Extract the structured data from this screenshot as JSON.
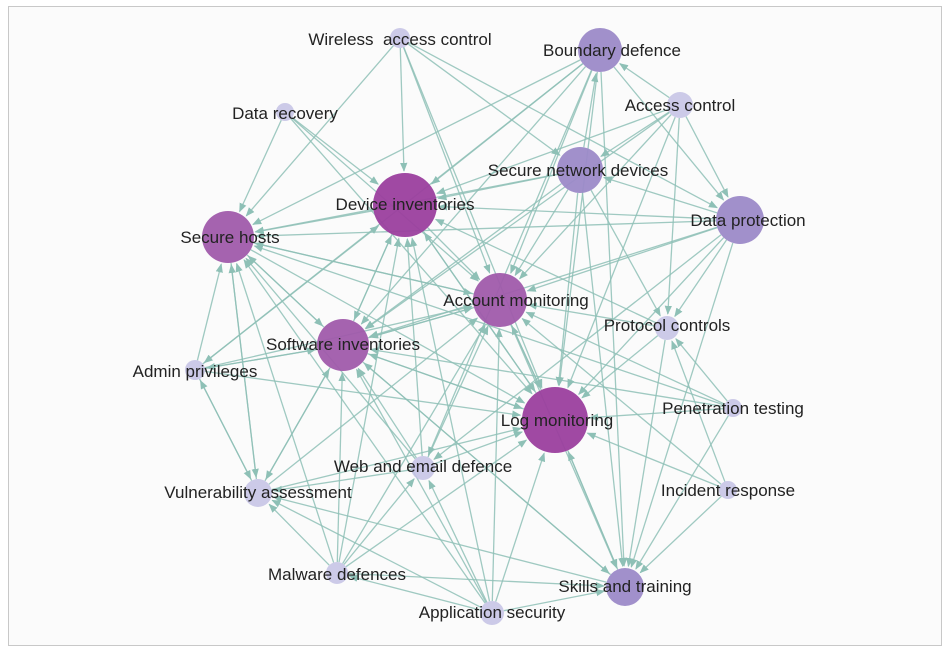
{
  "colors": {
    "edge": "#8ec0b6",
    "node_dark": "#9b3f9e",
    "node_medium": "#a05bab",
    "node_light": "#9c8ac8",
    "node_pale": "#c3c1e4",
    "label": "#222222"
  },
  "nodes": [
    {
      "id": "wireless",
      "label": "Wireless  access control",
      "level": "pale"
    },
    {
      "id": "boundary",
      "label": "Boundary defence",
      "level": "light"
    },
    {
      "id": "access",
      "label": "Access control",
      "level": "pale"
    },
    {
      "id": "recovery",
      "label": "Data recovery",
      "level": "pale"
    },
    {
      "id": "securenet",
      "label": "Secure network devices",
      "level": "light"
    },
    {
      "id": "device",
      "label": "Device inventories",
      "level": "dark"
    },
    {
      "id": "dataprot",
      "label": "Data protection",
      "level": "light"
    },
    {
      "id": "hosts",
      "label": "Secure hosts",
      "level": "medium"
    },
    {
      "id": "account",
      "label": "Account monitoring",
      "level": "medium"
    },
    {
      "id": "protocol",
      "label": "Protocol controls",
      "level": "pale"
    },
    {
      "id": "software",
      "label": "Software inventories",
      "level": "medium"
    },
    {
      "id": "admin",
      "label": "Admin privileges",
      "level": "pale"
    },
    {
      "id": "log",
      "label": "Log monitoring",
      "level": "dark"
    },
    {
      "id": "pentest",
      "label": "Penetration testing",
      "level": "pale"
    },
    {
      "id": "web",
      "label": "Web and email defence",
      "level": "pale"
    },
    {
      "id": "vuln",
      "label": "Vulnerability assessment",
      "level": "pale"
    },
    {
      "id": "incident",
      "label": "Incident response",
      "level": "pale"
    },
    {
      "id": "malware",
      "label": "Malware defences",
      "level": "pale"
    },
    {
      "id": "skills",
      "label": "Skills and training",
      "level": "light"
    },
    {
      "id": "appsec",
      "label": "Application security",
      "level": "pale"
    }
  ],
  "edges": [
    [
      "wireless",
      "device"
    ],
    [
      "wireless",
      "hosts"
    ],
    [
      "wireless",
      "account"
    ],
    [
      "wireless",
      "log"
    ],
    [
      "wireless",
      "dataprot"
    ],
    [
      "wireless",
      "securenet"
    ],
    [
      "boundary",
      "device"
    ],
    [
      "boundary",
      "hosts"
    ],
    [
      "boundary",
      "software"
    ],
    [
      "boundary",
      "account"
    ],
    [
      "boundary",
      "log"
    ],
    [
      "boundary",
      "dataprot"
    ],
    [
      "boundary",
      "skills"
    ],
    [
      "boundary",
      "admin"
    ],
    [
      "boundary",
      "web"
    ],
    [
      "access",
      "securenet"
    ],
    [
      "access",
      "device"
    ],
    [
      "access",
      "account"
    ],
    [
      "access",
      "log"
    ],
    [
      "access",
      "boundary"
    ],
    [
      "access",
      "dataprot"
    ],
    [
      "access",
      "software"
    ],
    [
      "access",
      "protocol"
    ],
    [
      "recovery",
      "device"
    ],
    [
      "recovery",
      "hosts"
    ],
    [
      "recovery",
      "account"
    ],
    [
      "recovery",
      "log"
    ],
    [
      "securenet",
      "device"
    ],
    [
      "securenet",
      "hosts"
    ],
    [
      "securenet",
      "account"
    ],
    [
      "securenet",
      "log"
    ],
    [
      "securenet",
      "software"
    ],
    [
      "securenet",
      "boundary"
    ],
    [
      "securenet",
      "protocol"
    ],
    [
      "securenet",
      "skills"
    ],
    [
      "device",
      "account"
    ],
    [
      "device",
      "log"
    ],
    [
      "device",
      "software"
    ],
    [
      "device",
      "hosts"
    ],
    [
      "dataprot",
      "device"
    ],
    [
      "dataprot",
      "hosts"
    ],
    [
      "dataprot",
      "account"
    ],
    [
      "dataprot",
      "log"
    ],
    [
      "dataprot",
      "software"
    ],
    [
      "dataprot",
      "protocol"
    ],
    [
      "dataprot",
      "securenet"
    ],
    [
      "dataprot",
      "skills"
    ],
    [
      "dataprot",
      "web"
    ],
    [
      "hosts",
      "account"
    ],
    [
      "hosts",
      "log"
    ],
    [
      "hosts",
      "vuln"
    ],
    [
      "hosts",
      "software"
    ],
    [
      "account",
      "log"
    ],
    [
      "account",
      "software"
    ],
    [
      "account",
      "skills"
    ],
    [
      "account",
      "hosts"
    ],
    [
      "protocol",
      "log"
    ],
    [
      "protocol",
      "account"
    ],
    [
      "protocol",
      "device"
    ],
    [
      "protocol",
      "skills"
    ],
    [
      "software",
      "log"
    ],
    [
      "software",
      "account"
    ],
    [
      "software",
      "device"
    ],
    [
      "software",
      "hosts"
    ],
    [
      "software",
      "vuln"
    ],
    [
      "software",
      "admin"
    ],
    [
      "software",
      "skills"
    ],
    [
      "admin",
      "hosts"
    ],
    [
      "admin",
      "device"
    ],
    [
      "admin",
      "account"
    ],
    [
      "admin",
      "log"
    ],
    [
      "admin",
      "vuln"
    ],
    [
      "admin",
      "software"
    ],
    [
      "log",
      "skills"
    ],
    [
      "log",
      "account"
    ],
    [
      "log",
      "device"
    ],
    [
      "log",
      "software"
    ],
    [
      "pentest",
      "log"
    ],
    [
      "pentest",
      "account"
    ],
    [
      "pentest",
      "software"
    ],
    [
      "pentest",
      "hosts"
    ],
    [
      "pentest",
      "protocol"
    ],
    [
      "pentest",
      "skills"
    ],
    [
      "web",
      "log"
    ],
    [
      "web",
      "account"
    ],
    [
      "web",
      "software"
    ],
    [
      "web",
      "hosts"
    ],
    [
      "web",
      "device"
    ],
    [
      "web",
      "vuln"
    ],
    [
      "vuln",
      "software"
    ],
    [
      "vuln",
      "hosts"
    ],
    [
      "vuln",
      "log"
    ],
    [
      "vuln",
      "admin"
    ],
    [
      "vuln",
      "account"
    ],
    [
      "incident",
      "log"
    ],
    [
      "incident",
      "skills"
    ],
    [
      "incident",
      "protocol"
    ],
    [
      "incident",
      "account"
    ],
    [
      "malware",
      "software"
    ],
    [
      "malware",
      "hosts"
    ],
    [
      "malware",
      "log"
    ],
    [
      "malware",
      "vuln"
    ],
    [
      "malware",
      "device"
    ],
    [
      "malware",
      "account"
    ],
    [
      "malware",
      "web"
    ],
    [
      "malware",
      "skills"
    ],
    [
      "skills",
      "log"
    ],
    [
      "skills",
      "vuln"
    ],
    [
      "skills",
      "software"
    ],
    [
      "appsec",
      "log"
    ],
    [
      "appsec",
      "software"
    ],
    [
      "appsec",
      "hosts"
    ],
    [
      "appsec",
      "account"
    ],
    [
      "appsec",
      "vuln"
    ],
    [
      "appsec",
      "device"
    ],
    [
      "appsec",
      "web"
    ],
    [
      "appsec",
      "skills"
    ],
    [
      "appsec",
      "malware"
    ]
  ]
}
